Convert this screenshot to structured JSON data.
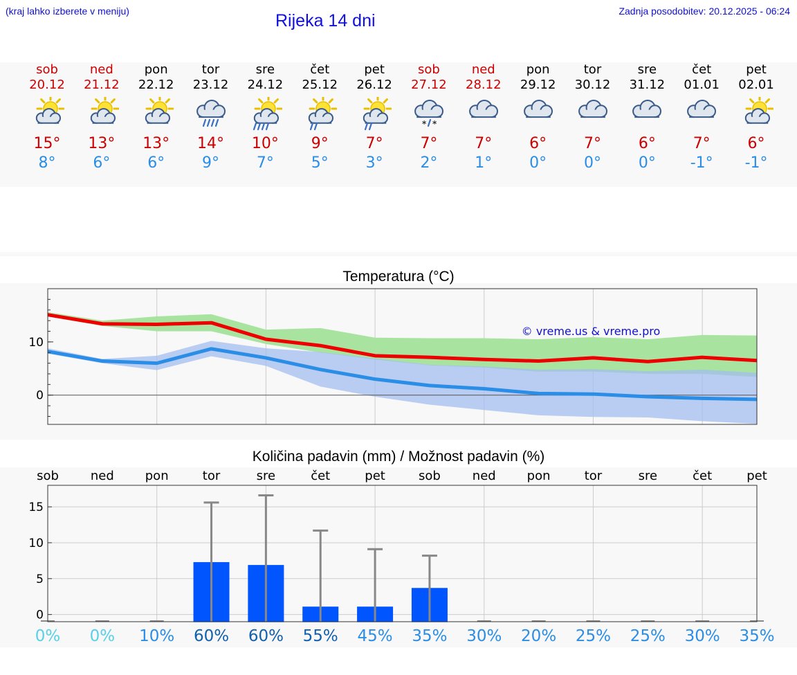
{
  "header": {
    "hint": "(kraj lahko izberete v meniju)",
    "title": "Rijeka 14 dni",
    "updated": "Zadnja posodobitev: 20.12.2025 - 06:24"
  },
  "days": [
    {
      "name": "sob",
      "date": "20.12",
      "weekend": true,
      "icon": "sun-cloud",
      "max": "15°",
      "min": "8°"
    },
    {
      "name": "ned",
      "date": "21.12",
      "weekend": true,
      "icon": "sun-cloud",
      "max": "13°",
      "min": "6°"
    },
    {
      "name": "pon",
      "date": "22.12",
      "weekend": false,
      "icon": "sun-cloud",
      "max": "13°",
      "min": "6°"
    },
    {
      "name": "tor",
      "date": "23.12",
      "weekend": false,
      "icon": "cloud-rain",
      "max": "14°",
      "min": "9°"
    },
    {
      "name": "sre",
      "date": "24.12",
      "weekend": false,
      "icon": "sun-cloud-rain",
      "max": "10°",
      "min": "7°"
    },
    {
      "name": "čet",
      "date": "25.12",
      "weekend": false,
      "icon": "sun-cloud-light-rain",
      "max": "9°",
      "min": "5°"
    },
    {
      "name": "pet",
      "date": "26.12",
      "weekend": false,
      "icon": "sun-cloud-light-rain",
      "max": "7°",
      "min": "3°"
    },
    {
      "name": "sob",
      "date": "27.12",
      "weekend": true,
      "icon": "cloud-sleet",
      "max": "7°",
      "min": "2°"
    },
    {
      "name": "ned",
      "date": "28.12",
      "weekend": true,
      "icon": "cloud",
      "max": "7°",
      "min": "1°"
    },
    {
      "name": "pon",
      "date": "29.12",
      "weekend": false,
      "icon": "cloud",
      "max": "6°",
      "min": "0°"
    },
    {
      "name": "tor",
      "date": "30.12",
      "weekend": false,
      "icon": "cloud",
      "max": "7°",
      "min": "0°"
    },
    {
      "name": "sre",
      "date": "31.12",
      "weekend": false,
      "icon": "cloud",
      "max": "6°",
      "min": "0°"
    },
    {
      "name": "čet",
      "date": "01.01",
      "weekend": false,
      "icon": "cloud",
      "max": "7°",
      "min": "-1°"
    },
    {
      "name": "pet",
      "date": "02.01",
      "weekend": false,
      "icon": "sun-cloud",
      "max": "6°",
      "min": "-1°"
    }
  ],
  "colors": {
    "weekend": "#cc0000",
    "weekday": "#000000",
    "max_line": "#ee0000",
    "min_line": "#2a8de6",
    "max_band": "#a8e4a0",
    "min_band": "#a4bef0",
    "overlap_band": "#7cc8a8",
    "bar": "#0055ff",
    "whisker": "#888888",
    "copyright": "#1010d0"
  },
  "chart_data": [
    {
      "type": "line",
      "title": "Temperatura (°C)",
      "annotation": "© vreme.us & vreme.pro",
      "x": [
        0,
        1,
        2,
        3,
        4,
        5,
        6,
        7,
        8,
        9,
        10,
        11,
        12,
        13
      ],
      "ylim": [
        -5.5,
        20
      ],
      "yticks": [
        0,
        10
      ],
      "yticklabels": [
        "0",
        "10"
      ],
      "grid": "vertical",
      "series": [
        {
          "name": "max",
          "values": [
            15.1,
            13.4,
            13.3,
            13.6,
            10.5,
            9.3,
            7.4,
            7.1,
            6.7,
            6.4,
            7.0,
            6.3,
            7.1,
            6.5
          ],
          "band_low": [
            14.8,
            13.0,
            12.0,
            12.0,
            9.6,
            8.0,
            6.7,
            5.6,
            5.2,
            4.4,
            4.4,
            4.0,
            4.0,
            3.4
          ],
          "band_high": [
            15.6,
            14.0,
            14.8,
            15.2,
            12.3,
            12.6,
            10.8,
            10.7,
            10.7,
            10.5,
            10.9,
            10.5,
            11.3,
            11.2
          ]
        },
        {
          "name": "min",
          "values": [
            8.2,
            6.4,
            6.0,
            8.7,
            7.0,
            4.8,
            3.0,
            1.8,
            1.2,
            0.3,
            0.2,
            -0.3,
            -0.6,
            -0.8
          ],
          "band_low": [
            7.8,
            6.0,
            4.7,
            7.3,
            5.5,
            1.6,
            -0.3,
            -1.8,
            -2.8,
            -3.8,
            -4.1,
            -4.2,
            -4.9,
            -5.4
          ],
          "band_high": [
            8.8,
            6.8,
            7.4,
            10.2,
            8.8,
            8.1,
            6.9,
            5.7,
            5.4,
            4.8,
            4.9,
            4.5,
            4.8,
            4.2
          ]
        }
      ]
    },
    {
      "type": "bar",
      "title": "Količina padavin (mm) / Možnost padavin (%)",
      "categories": [
        "sob",
        "ned",
        "pon",
        "tor",
        "sre",
        "čet",
        "pet",
        "sob",
        "ned",
        "pon",
        "tor",
        "sre",
        "čet",
        "pet"
      ],
      "values": [
        0,
        0,
        0,
        7.3,
        6.9,
        1.1,
        1.1,
        3.7,
        0,
        0,
        0,
        0,
        0,
        0
      ],
      "whisker_high": [
        0,
        0,
        0,
        15.6,
        16.6,
        11.7,
        9.1,
        8.2,
        0,
        0,
        0,
        0,
        0,
        0
      ],
      "probability": [
        "0%",
        "0%",
        "10%",
        "60%",
        "60%",
        "55%",
        "45%",
        "35%",
        "30%",
        "20%",
        "25%",
        "25%",
        "30%",
        "35%"
      ],
      "probability_colors": [
        "#58d0e8",
        "#58d0e8",
        "#2a8de6",
        "#1060b0",
        "#1060b0",
        "#1060b0",
        "#2a8de6",
        "#2a8de6",
        "#2a8de6",
        "#2a8de6",
        "#2a8de6",
        "#2a8de6",
        "#2a8de6",
        "#2a8de6"
      ],
      "ylim": [
        -1,
        18
      ],
      "yticks": [
        0,
        5,
        10,
        15
      ],
      "yticklabels": [
        "0",
        "5",
        "10",
        "15"
      ],
      "grid": "both"
    }
  ]
}
